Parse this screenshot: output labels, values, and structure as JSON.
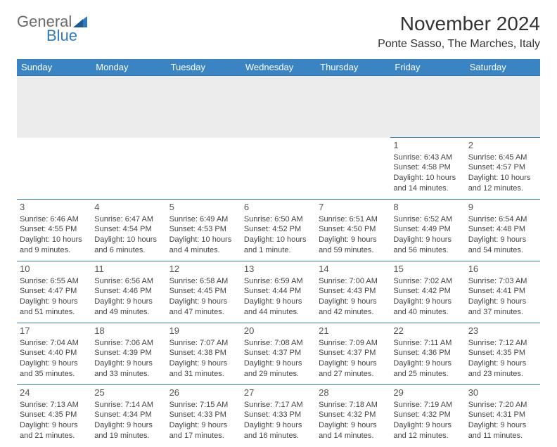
{
  "brand": {
    "text1": "General",
    "text2": "Blue"
  },
  "title": "November 2024",
  "location": "Ponte Sasso, The Marches, Italy",
  "colors": {
    "header_bg": "#3b84c4",
    "header_text": "#ffffff",
    "cell_border": "#2f79bd",
    "spacer_bg": "#ececec",
    "body_text": "#444444",
    "brand_gray": "#6a6a6a",
    "brand_blue": "#2f79bd",
    "background": "#ffffff"
  },
  "fonts": {
    "title_size": 28,
    "location_size": 16,
    "th_size": 13,
    "cell_size": 11
  },
  "dayHeaders": [
    "Sunday",
    "Monday",
    "Tuesday",
    "Wednesday",
    "Thursday",
    "Friday",
    "Saturday"
  ],
  "weeks": [
    [
      null,
      null,
      null,
      null,
      null,
      {
        "n": "1",
        "sunrise": "Sunrise: 6:43 AM",
        "sunset": "Sunset: 4:58 PM",
        "d1": "Daylight: 10 hours",
        "d2": "and 14 minutes."
      },
      {
        "n": "2",
        "sunrise": "Sunrise: 6:45 AM",
        "sunset": "Sunset: 4:57 PM",
        "d1": "Daylight: 10 hours",
        "d2": "and 12 minutes."
      }
    ],
    [
      {
        "n": "3",
        "sunrise": "Sunrise: 6:46 AM",
        "sunset": "Sunset: 4:55 PM",
        "d1": "Daylight: 10 hours",
        "d2": "and 9 minutes."
      },
      {
        "n": "4",
        "sunrise": "Sunrise: 6:47 AM",
        "sunset": "Sunset: 4:54 PM",
        "d1": "Daylight: 10 hours",
        "d2": "and 6 minutes."
      },
      {
        "n": "5",
        "sunrise": "Sunrise: 6:49 AM",
        "sunset": "Sunset: 4:53 PM",
        "d1": "Daylight: 10 hours",
        "d2": "and 4 minutes."
      },
      {
        "n": "6",
        "sunrise": "Sunrise: 6:50 AM",
        "sunset": "Sunset: 4:52 PM",
        "d1": "Daylight: 10 hours",
        "d2": "and 1 minute."
      },
      {
        "n": "7",
        "sunrise": "Sunrise: 6:51 AM",
        "sunset": "Sunset: 4:50 PM",
        "d1": "Daylight: 9 hours",
        "d2": "and 59 minutes."
      },
      {
        "n": "8",
        "sunrise": "Sunrise: 6:52 AM",
        "sunset": "Sunset: 4:49 PM",
        "d1": "Daylight: 9 hours",
        "d2": "and 56 minutes."
      },
      {
        "n": "9",
        "sunrise": "Sunrise: 6:54 AM",
        "sunset": "Sunset: 4:48 PM",
        "d1": "Daylight: 9 hours",
        "d2": "and 54 minutes."
      }
    ],
    [
      {
        "n": "10",
        "sunrise": "Sunrise: 6:55 AM",
        "sunset": "Sunset: 4:47 PM",
        "d1": "Daylight: 9 hours",
        "d2": "and 51 minutes."
      },
      {
        "n": "11",
        "sunrise": "Sunrise: 6:56 AM",
        "sunset": "Sunset: 4:46 PM",
        "d1": "Daylight: 9 hours",
        "d2": "and 49 minutes."
      },
      {
        "n": "12",
        "sunrise": "Sunrise: 6:58 AM",
        "sunset": "Sunset: 4:45 PM",
        "d1": "Daylight: 9 hours",
        "d2": "and 47 minutes."
      },
      {
        "n": "13",
        "sunrise": "Sunrise: 6:59 AM",
        "sunset": "Sunset: 4:44 PM",
        "d1": "Daylight: 9 hours",
        "d2": "and 44 minutes."
      },
      {
        "n": "14",
        "sunrise": "Sunrise: 7:00 AM",
        "sunset": "Sunset: 4:43 PM",
        "d1": "Daylight: 9 hours",
        "d2": "and 42 minutes."
      },
      {
        "n": "15",
        "sunrise": "Sunrise: 7:02 AM",
        "sunset": "Sunset: 4:42 PM",
        "d1": "Daylight: 9 hours",
        "d2": "and 40 minutes."
      },
      {
        "n": "16",
        "sunrise": "Sunrise: 7:03 AM",
        "sunset": "Sunset: 4:41 PM",
        "d1": "Daylight: 9 hours",
        "d2": "and 37 minutes."
      }
    ],
    [
      {
        "n": "17",
        "sunrise": "Sunrise: 7:04 AM",
        "sunset": "Sunset: 4:40 PM",
        "d1": "Daylight: 9 hours",
        "d2": "and 35 minutes."
      },
      {
        "n": "18",
        "sunrise": "Sunrise: 7:06 AM",
        "sunset": "Sunset: 4:39 PM",
        "d1": "Daylight: 9 hours",
        "d2": "and 33 minutes."
      },
      {
        "n": "19",
        "sunrise": "Sunrise: 7:07 AM",
        "sunset": "Sunset: 4:38 PM",
        "d1": "Daylight: 9 hours",
        "d2": "and 31 minutes."
      },
      {
        "n": "20",
        "sunrise": "Sunrise: 7:08 AM",
        "sunset": "Sunset: 4:37 PM",
        "d1": "Daylight: 9 hours",
        "d2": "and 29 minutes."
      },
      {
        "n": "21",
        "sunrise": "Sunrise: 7:09 AM",
        "sunset": "Sunset: 4:37 PM",
        "d1": "Daylight: 9 hours",
        "d2": "and 27 minutes."
      },
      {
        "n": "22",
        "sunrise": "Sunrise: 7:11 AM",
        "sunset": "Sunset: 4:36 PM",
        "d1": "Daylight: 9 hours",
        "d2": "and 25 minutes."
      },
      {
        "n": "23",
        "sunrise": "Sunrise: 7:12 AM",
        "sunset": "Sunset: 4:35 PM",
        "d1": "Daylight: 9 hours",
        "d2": "and 23 minutes."
      }
    ],
    [
      {
        "n": "24",
        "sunrise": "Sunrise: 7:13 AM",
        "sunset": "Sunset: 4:35 PM",
        "d1": "Daylight: 9 hours",
        "d2": "and 21 minutes."
      },
      {
        "n": "25",
        "sunrise": "Sunrise: 7:14 AM",
        "sunset": "Sunset: 4:34 PM",
        "d1": "Daylight: 9 hours",
        "d2": "and 19 minutes."
      },
      {
        "n": "26",
        "sunrise": "Sunrise: 7:15 AM",
        "sunset": "Sunset: 4:33 PM",
        "d1": "Daylight: 9 hours",
        "d2": "and 17 minutes."
      },
      {
        "n": "27",
        "sunrise": "Sunrise: 7:17 AM",
        "sunset": "Sunset: 4:33 PM",
        "d1": "Daylight: 9 hours",
        "d2": "and 16 minutes."
      },
      {
        "n": "28",
        "sunrise": "Sunrise: 7:18 AM",
        "sunset": "Sunset: 4:32 PM",
        "d1": "Daylight: 9 hours",
        "d2": "and 14 minutes."
      },
      {
        "n": "29",
        "sunrise": "Sunrise: 7:19 AM",
        "sunset": "Sunset: 4:32 PM",
        "d1": "Daylight: 9 hours",
        "d2": "and 12 minutes."
      },
      {
        "n": "30",
        "sunrise": "Sunrise: 7:20 AM",
        "sunset": "Sunset: 4:31 PM",
        "d1": "Daylight: 9 hours",
        "d2": "and 11 minutes."
      }
    ]
  ]
}
